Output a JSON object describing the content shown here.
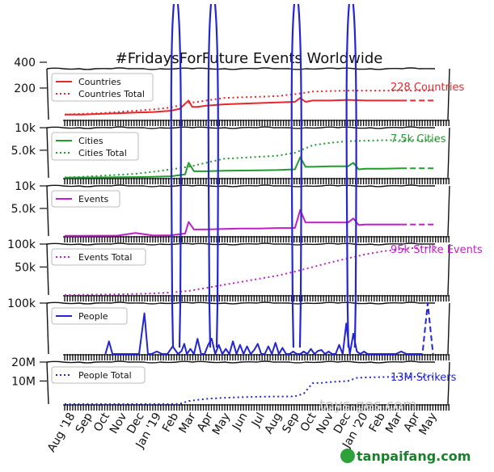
{
  "chart_data": {
    "type": "line",
    "title": "#FridaysForFuture Events Worldwide",
    "x_tick_labels": [
      "Aug '18",
      "Sep",
      "Oct",
      "Nov",
      "Dec",
      "Jan '19",
      "Feb",
      "Mar",
      "Apr",
      "May",
      "Jun",
      "Jul",
      "Aug",
      "Sep",
      "Oct",
      "Nov",
      "Dec",
      "Jan '20",
      "Feb",
      "Mar",
      "Apr",
      "May"
    ],
    "panels": [
      {
        "yticks": [
          "400",
          "200"
        ],
        "ylim": [
          0,
          400
        ],
        "legend": [
          "Countries",
          "Countries Total"
        ],
        "annotation": "228 Countries",
        "series": [
          {
            "name": "Countries",
            "color": "#e8262b",
            "style": "solid",
            "x": [
              0,
              1,
              2,
              3,
              4,
              5,
              6,
              6.5,
              7,
              7.2,
              7.5,
              8,
              9,
              10,
              11,
              12,
              13,
              13.3,
              13.6,
              14,
              15,
              16,
              17,
              18,
              19,
              20,
              21
            ],
            "y": [
              40,
              40,
              45,
              50,
              55,
              60,
              70,
              85,
              150,
              100,
              100,
              110,
              120,
              125,
              130,
              135,
              140,
              170,
              140,
              150,
              150,
              155,
              150,
              150,
              150,
              150,
              150
            ],
            "dashed_from": 19
          },
          {
            "name": "Countries Total",
            "color": "#e8262b",
            "style": "dotted",
            "x": [
              0,
              1,
              2,
              3,
              4,
              5,
              6,
              7,
              8,
              9,
              10,
              11,
              12,
              13,
              14,
              15,
              16,
              17,
              18,
              19,
              20,
              21
            ],
            "y": [
              40,
              45,
              50,
              60,
              70,
              80,
              95,
              130,
              150,
              170,
              175,
              180,
              185,
              200,
              220,
              225,
              228,
              228,
              228,
              228,
              228,
              228
            ]
          }
        ]
      },
      {
        "yticks": [
          "10k",
          "5.0k"
        ],
        "ylim": [
          0,
          10000
        ],
        "legend": [
          "Cities",
          "Cities Total"
        ],
        "annotation": "7.5k Cities",
        "series": [
          {
            "name": "Cities",
            "color": "#239b2e",
            "style": "solid",
            "x": [
              0,
              1,
              2,
              3,
              4,
              5,
              6,
              6.8,
              7,
              7.3,
              8,
              9,
              10,
              11,
              12,
              13,
              13.3,
              13.6,
              14,
              15,
              16,
              16.3,
              16.6,
              17,
              18,
              19,
              20,
              21
            ],
            "y": [
              50,
              60,
              80,
              120,
              150,
              200,
              300,
              700,
              3000,
              1300,
              1300,
              1400,
              1450,
              1500,
              1550,
              1700,
              4100,
              2200,
              2200,
              2300,
              2300,
              3000,
              1700,
              1800,
              1800,
              1900,
              1900,
              1900
            ],
            "dashed_from": 19
          },
          {
            "name": "Cities Total",
            "color": "#239b2e",
            "style": "dotted",
            "x": [
              0,
              1,
              2,
              3,
              4,
              5,
              6,
              7,
              8,
              9,
              10,
              11,
              12,
              13,
              14,
              15,
              16,
              17,
              18,
              19,
              20,
              21
            ],
            "y": [
              80,
              200,
              400,
              600,
              800,
              1200,
              1700,
              2200,
              3000,
              3800,
              4000,
              4200,
              4400,
              5000,
              6500,
              7000,
              7300,
              7400,
              7500,
              7500,
              7500,
              7500
            ]
          }
        ]
      },
      {
        "yticks": [
          "10k",
          "5.0k"
        ],
        "ylim": [
          0,
          10000
        ],
        "legend": [
          "Events"
        ],
        "annotation": "",
        "series": [
          {
            "name": "Events",
            "color": "#c020c8",
            "style": "solid",
            "x": [
              0,
              1,
              2,
              3,
              4,
              5,
              6,
              6.8,
              7,
              7.3,
              8,
              9,
              10,
              11,
              12,
              13,
              13.3,
              13.6,
              14,
              15,
              16,
              16.3,
              16.6,
              17,
              18,
              19,
              20,
              21
            ],
            "y": [
              30,
              40,
              60,
              80,
              600,
              100,
              150,
              500,
              2800,
              1300,
              1300,
              1400,
              1500,
              1500,
              1600,
              1600,
              5200,
              2700,
              2700,
              2700,
              2700,
              3500,
              2200,
              2300,
              2300,
              2300,
              2300,
              2300
            ],
            "dashed_from": 19
          }
        ]
      },
      {
        "yticks": [
          "100k",
          "50k"
        ],
        "ylim": [
          0,
          100000
        ],
        "legend": [
          "Events Total"
        ],
        "annotation": "95k Strike Events",
        "series": [
          {
            "name": "Events Total",
            "color": "#c020c8",
            "style": "dotted",
            "x": [
              0,
              1,
              2,
              3,
              4,
              5,
              6,
              7,
              8,
              9,
              10,
              11,
              12,
              13,
              14,
              15,
              16,
              17,
              18,
              19,
              20,
              21
            ],
            "y": [
              0,
              500,
              1000,
              1500,
              2000,
              3000,
              5000,
              8000,
              14000,
              20000,
              26000,
              32000,
              38000,
              46000,
              55000,
              64000,
              72000,
              80000,
              86000,
              90000,
              93000,
              95000
            ]
          }
        ]
      },
      {
        "yticks": [
          "100k"
        ],
        "ylim": [
          0,
          100000
        ],
        "legend": [
          "People"
        ],
        "annotation": "",
        "series": [
          {
            "name": "People",
            "color": "#2426d0",
            "style": "solid",
            "x": [
              2.3,
              2.5,
              2.7,
              4.2,
              4.5,
              4.7,
              4.9,
              5.2,
              5.5,
              5.8,
              6.1,
              6.4,
              6.6,
              6.75,
              6.9,
              7.1,
              7.3,
              7.5,
              7.7,
              7.9,
              8.1,
              8.3,
              8.5,
              8.7,
              8.9,
              9.1,
              9.3,
              9.5,
              9.7,
              9.9,
              10.1,
              10.3,
              10.5,
              10.7,
              10.9,
              11.1,
              11.3,
              11.5,
              11.7,
              11.9,
              12.1,
              12.3,
              12.5,
              12.7,
              12.9,
              13.1,
              13.3,
              13.5,
              13.7,
              13.9,
              14.1,
              14.3,
              14.5,
              14.7,
              14.9,
              15.1,
              15.3,
              15.5,
              15.7,
              15.9,
              16.1,
              16.3,
              16.5,
              16.7,
              16.9,
              17.1,
              17.3,
              17.5,
              17.7,
              17.9,
              18.1,
              18.4,
              18.7,
              19.0,
              19.3,
              19.6,
              19.9,
              20.2
            ],
            "y": [
              0,
              25000,
              0,
              0,
              80000,
              0,
              0,
              5000,
              0,
              0,
              15000,
              0,
              6000,
              20000,
              0,
              10000,
              0,
              30000,
              0,
              0,
              18000,
              30000,
              0,
              18000,
              0,
              10000,
              0,
              25000,
              0,
              18000,
              0,
              15000,
              0,
              8000,
              20000,
              0,
              0,
              15000,
              0,
              22000,
              0,
              12000,
              0,
              0,
              5000,
              0,
              0,
              5000,
              0,
              10000,
              0,
              6000,
              8000,
              0,
              5000,
              0,
              0,
              18000,
              0,
              60000,
              0,
              40000,
              5000,
              0,
              5000,
              0,
              0,
              0,
              0,
              0,
              0,
              0,
              0,
              5000,
              0,
              0,
              0,
              0
            ]
          },
          {
            "name": "People dashed",
            "color": "#2426d0",
            "style": "dashed",
            "x": [
              19.9,
              20.2,
              20.5,
              20.8
            ],
            "y": [
              0,
              0,
              100000,
              0
            ]
          }
        ]
      },
      {
        "yticks": [
          "20M",
          "10M"
        ],
        "ylim": [
          0,
          20000000
        ],
        "legend": [
          "People Total"
        ],
        "annotation": "13M Strikers",
        "series": [
          {
            "name": "People Total",
            "color": "#2426d0",
            "style": "dotted",
            "x": [
              0,
              1,
              2,
              3,
              4,
              5,
              6,
              6.5,
              7,
              7.5,
              8,
              9,
              10,
              11,
              12,
              12.5,
              13,
              13.5,
              14,
              14.5,
              15,
              16,
              16.5,
              17,
              18,
              19,
              20,
              21
            ],
            "y": [
              0,
              0,
              0,
              0,
              0,
              0,
              0,
              100000,
              1500000,
              2000000,
              2500000,
              3000000,
              3300000,
              3500000,
              3600000,
              3600000,
              3700000,
              5000000,
              10000000,
              10100000,
              10500000,
              11000000,
              12500000,
              12700000,
              12900000,
              13000000,
              13000000,
              13000000
            ]
          }
        ]
      }
    ],
    "spikes": {
      "color": "#2426d0",
      "x": [
        6.3,
        8.4,
        13.1,
        16.2
      ],
      "note": "People line shoots far above its panel"
    },
    "watermarks": [
      "toys-ges.com",
      "tanpaifang.com"
    ]
  }
}
